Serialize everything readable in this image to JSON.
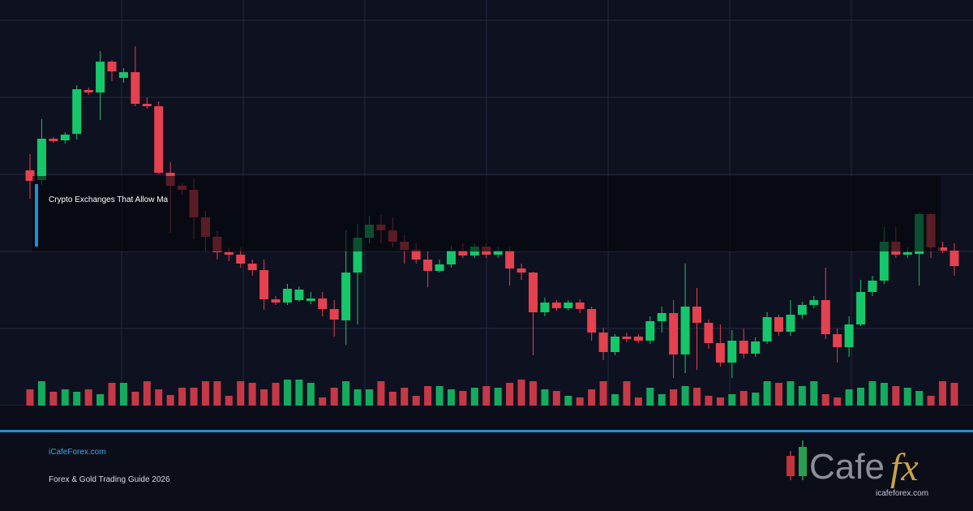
{
  "headline": "Crypto Exchanges That Allow Ma",
  "footer": {
    "site": "iCafeForex.com",
    "subtitle": "Forex & Gold Trading Guide 2026"
  },
  "logo": {
    "word": "Cafe",
    "fx": "fx",
    "url": "icafeforex.com"
  }
}
